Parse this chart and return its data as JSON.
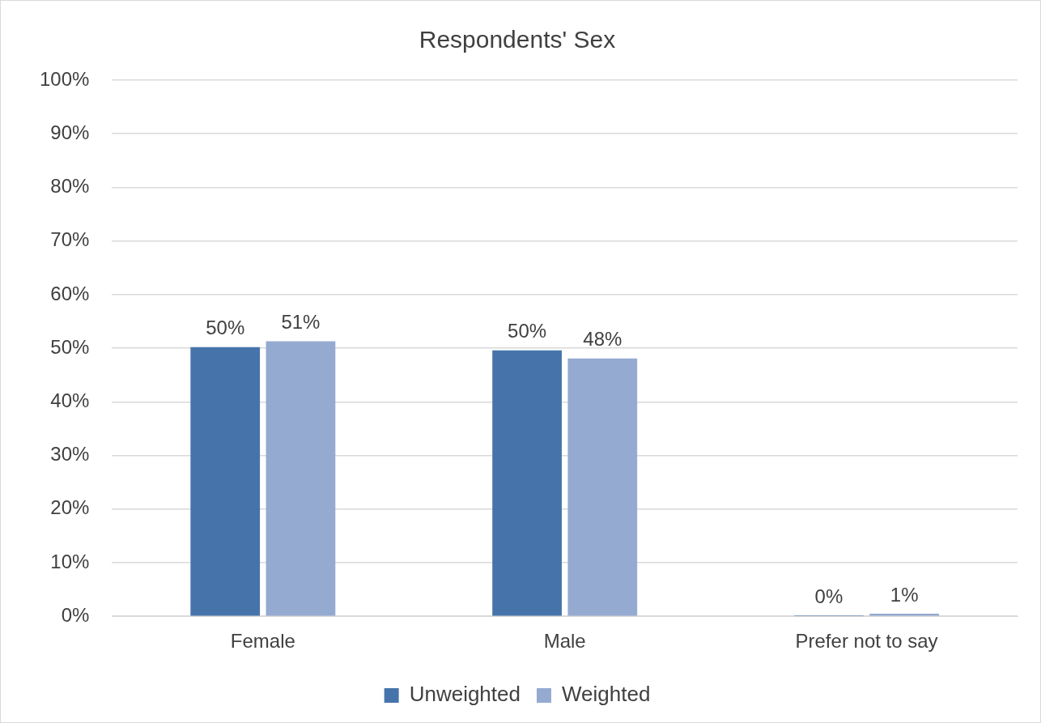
{
  "chart_data": {
    "type": "bar",
    "title": "Respondents' Sex",
    "categories": [
      "Female",
      "Male",
      "Prefer not to say"
    ],
    "series": [
      {
        "name": "Unweighted",
        "color": "#4674aa",
        "values": [
          50.2,
          49.6,
          0.2
        ],
        "value_labels": [
          "50%",
          "50%",
          "0%"
        ]
      },
      {
        "name": "Weighted",
        "color": "#95aad1",
        "values": [
          51.3,
          48.1,
          0.5
        ],
        "value_labels": [
          "51%",
          "48%",
          "1%"
        ]
      }
    ],
    "ylim": [
      0,
      100
    ],
    "yticks": [
      {
        "value": 0,
        "label": "0%"
      },
      {
        "value": 10,
        "label": "10%"
      },
      {
        "value": 20,
        "label": "20%"
      },
      {
        "value": 30,
        "label": "30%"
      },
      {
        "value": 40,
        "label": "40%"
      },
      {
        "value": 50,
        "label": "50%"
      },
      {
        "value": 60,
        "label": "60%"
      },
      {
        "value": 70,
        "label": "70%"
      },
      {
        "value": 80,
        "label": "80%"
      },
      {
        "value": 90,
        "label": "90%"
      },
      {
        "value": 100,
        "label": "100%"
      }
    ],
    "grid": "y",
    "legend": "bottom"
  }
}
